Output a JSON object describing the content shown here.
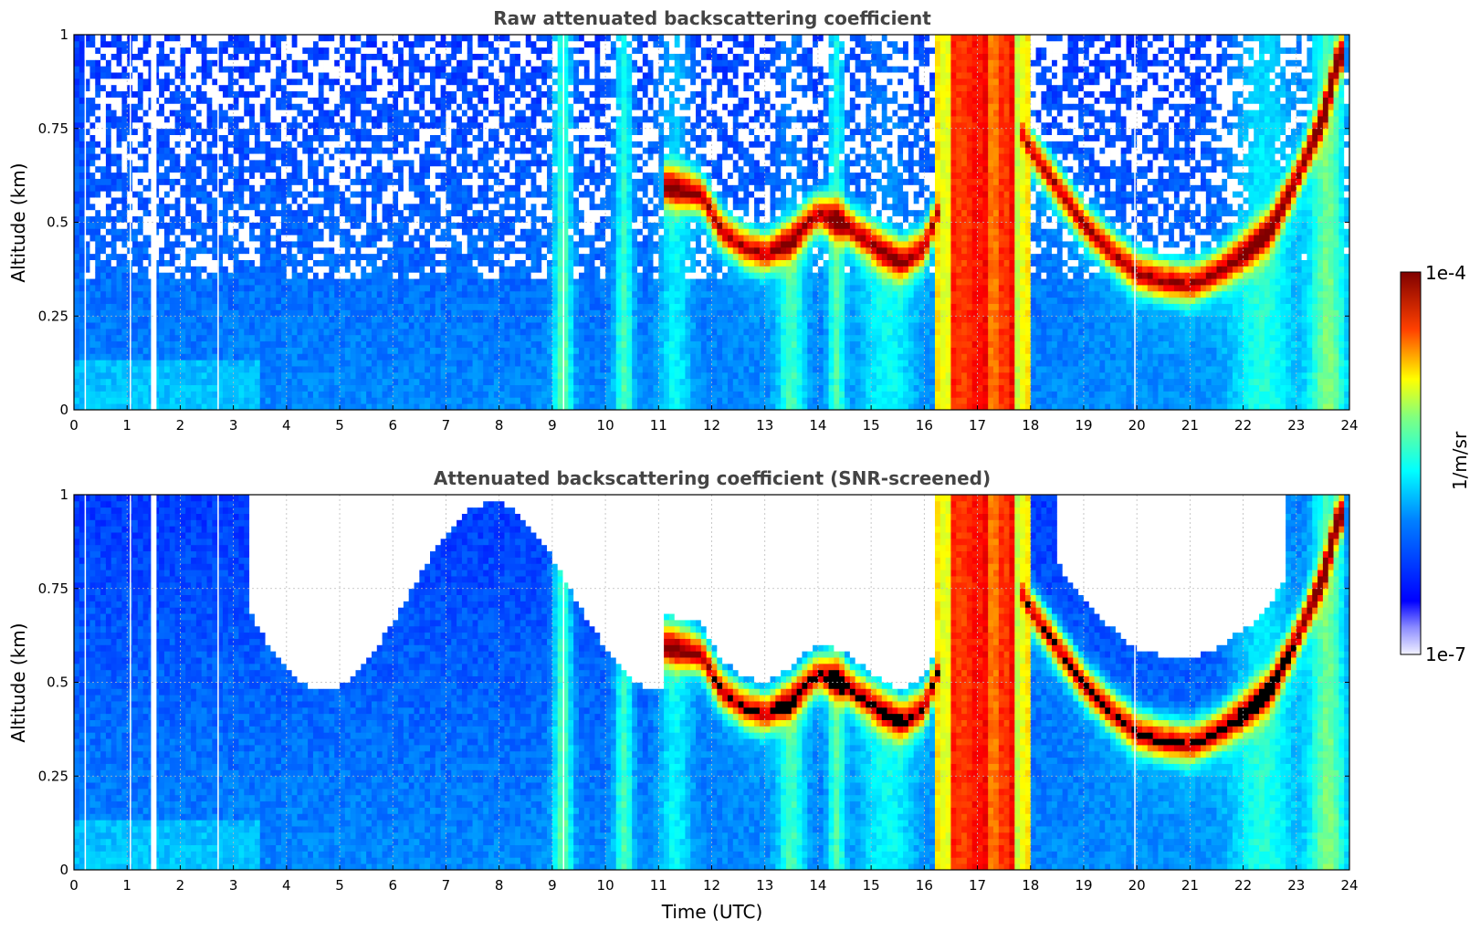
{
  "chart_data": [
    {
      "type": "heatmap",
      "title": "Raw attenuated backscattering coefficient",
      "xlabel": "",
      "ylabel": "Altitude (km)",
      "xlim": [
        0,
        24
      ],
      "ylim": [
        0,
        1
      ],
      "xticks": [
        "0",
        "1",
        "2",
        "3",
        "4",
        "5",
        "6",
        "7",
        "8",
        "9",
        "10",
        "11",
        "12",
        "13",
        "14",
        "15",
        "16",
        "17",
        "18",
        "19",
        "20",
        "21",
        "22",
        "23",
        "24"
      ],
      "yticks": [
        "0",
        "0.25",
        "0.5",
        "0.75",
        "1"
      ],
      "grid": true,
      "screened": false,
      "cloud_base_km": [
        [
          11.2,
          0.6
        ],
        [
          11.8,
          0.58
        ],
        [
          12.2,
          0.48
        ],
        [
          12.6,
          0.44
        ],
        [
          13.0,
          0.42
        ],
        [
          13.5,
          0.46
        ],
        [
          14.0,
          0.53
        ],
        [
          14.5,
          0.5
        ],
        [
          15.2,
          0.43
        ],
        [
          15.6,
          0.4
        ],
        [
          16.0,
          0.44
        ],
        [
          17.0,
          0.8
        ],
        [
          17.5,
          0.83
        ],
        [
          18.0,
          0.7
        ],
        [
          18.5,
          0.6
        ],
        [
          19.0,
          0.5
        ],
        [
          19.5,
          0.43
        ],
        [
          20.0,
          0.37
        ],
        [
          20.5,
          0.35
        ],
        [
          21.0,
          0.34
        ],
        [
          21.5,
          0.37
        ],
        [
          22.0,
          0.42
        ],
        [
          22.5,
          0.48
        ],
        [
          23.0,
          0.62
        ],
        [
          23.5,
          0.78
        ],
        [
          23.8,
          0.95
        ]
      ],
      "thick_cloud_hours": [
        [
          16.5,
          17.7
        ]
      ]
    },
    {
      "type": "heatmap",
      "title": "Attenuated backscattering coefficient (SNR-screened)",
      "xlabel": "Time (UTC)",
      "ylabel": "Altitude (km)",
      "xlim": [
        0,
        24
      ],
      "ylim": [
        0,
        1
      ],
      "xticks": [
        "0",
        "1",
        "2",
        "3",
        "4",
        "5",
        "6",
        "7",
        "8",
        "9",
        "10",
        "11",
        "12",
        "13",
        "14",
        "15",
        "16",
        "17",
        "18",
        "19",
        "20",
        "21",
        "22",
        "23",
        "24"
      ],
      "yticks": [
        "0",
        "0.25",
        "0.5",
        "0.75",
        "1"
      ],
      "grid": true,
      "screened": true
    }
  ],
  "colorbar": {
    "label": "1/m/sr",
    "max_label": "1e-4",
    "min_label": "1e-7",
    "colormap": "jet",
    "scale": "log",
    "range": [
      1e-07,
      0.0001
    ]
  }
}
